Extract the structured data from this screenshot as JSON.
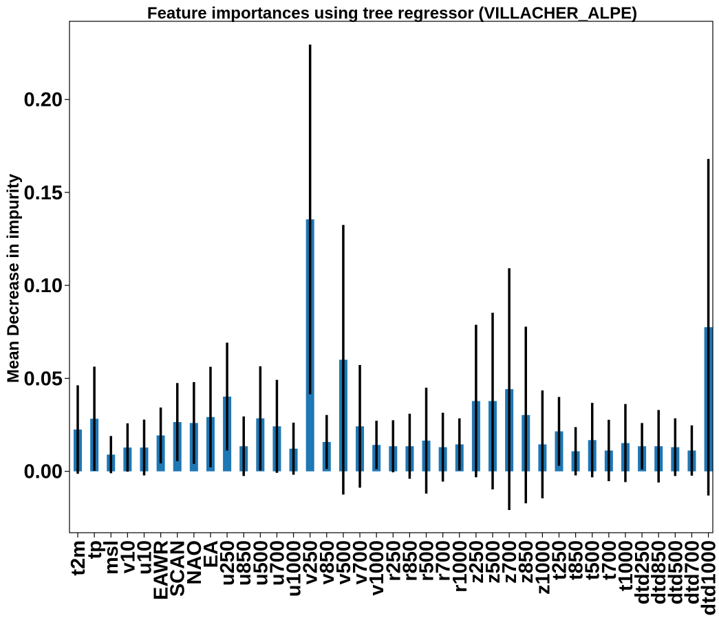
{
  "chart_data": {
    "type": "bar",
    "title": "Feature importances using tree regressor (VILLACHER_ALPE)",
    "xlabel": "",
    "ylabel": "Mean Decrease in impurity",
    "ylim": [
      -0.033,
      0.242
    ],
    "yticks": [
      0.0,
      0.05,
      0.1,
      0.15,
      0.2
    ],
    "ytick_labels": [
      "0.00",
      "0.05",
      "0.10",
      "0.15",
      "0.20"
    ],
    "grid": false,
    "bar_color": "#1f77b4",
    "error_color": "#000000",
    "categories": [
      "t2m",
      "tp",
      "msl",
      "v10",
      "u10",
      "EAWR",
      "SCAN",
      "NAO",
      "EA",
      "u250",
      "u850",
      "u500",
      "u700",
      "u1000",
      "v250",
      "v850",
      "v500",
      "v700",
      "v1000",
      "r250",
      "r850",
      "r500",
      "r700",
      "r1000",
      "z250",
      "z500",
      "z700",
      "z850",
      "z1000",
      "t250",
      "t850",
      "t500",
      "t700",
      "t1000",
      "dtd250",
      "dtd850",
      "dtd500",
      "dtd700",
      "dtd1000"
    ],
    "values": [
      0.0225,
      0.0283,
      0.009,
      0.0128,
      0.0128,
      0.0193,
      0.0265,
      0.026,
      0.0292,
      0.0402,
      0.0135,
      0.0285,
      0.0242,
      0.0122,
      0.1355,
      0.0158,
      0.06,
      0.0242,
      0.0142,
      0.0135,
      0.0135,
      0.0165,
      0.013,
      0.0145,
      0.0378,
      0.0378,
      0.0442,
      0.0303,
      0.0145,
      0.0215,
      0.0108,
      0.0168,
      0.0112,
      0.0152,
      0.0135,
      0.0135,
      0.013,
      0.0112,
      0.0775
    ],
    "errors": [
      0.0238,
      0.028,
      0.01,
      0.013,
      0.015,
      0.015,
      0.021,
      0.022,
      0.027,
      0.029,
      0.016,
      0.028,
      0.025,
      0.014,
      0.094,
      0.0145,
      0.0725,
      0.033,
      0.013,
      0.014,
      0.0175,
      0.0285,
      0.0185,
      0.014,
      0.041,
      0.0475,
      0.065,
      0.0475,
      0.029,
      0.0185,
      0.013,
      0.02,
      0.0165,
      0.021,
      0.0125,
      0.0195,
      0.0155,
      0.0135,
      0.0905
    ]
  }
}
